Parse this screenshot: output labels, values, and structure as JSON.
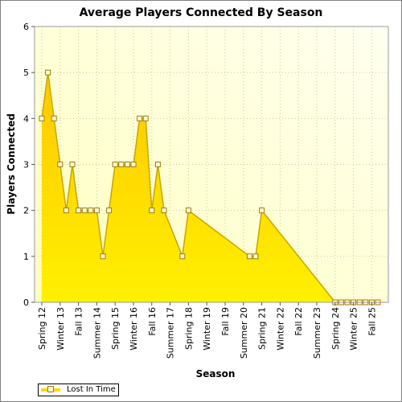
{
  "chart_data": {
    "type": "area",
    "title": "Average Players Connected By Season",
    "xlabel": "Season",
    "ylabel": "Players Connected",
    "ylim": [
      0,
      6
    ],
    "yticks": [
      0,
      1,
      2,
      3,
      4,
      5,
      6
    ],
    "grid": true,
    "legend_position": "bottom-left",
    "categories": [
      "Spring 12",
      "Summer 12",
      "Fall 12",
      "Winter 13",
      "Spring 13",
      "Summer 13",
      "Fall 13",
      "Winter 14",
      "Spring 14",
      "Summer 14",
      "Fall 14",
      "Winter 15",
      "Spring 15",
      "Summer 15",
      "Fall 15",
      "Winter 16",
      "Spring 16",
      "Summer 16",
      "Fall 16",
      "Winter 17",
      "Spring 17",
      "Summer 17",
      "Fall 17",
      "Winter 18",
      "Spring 18",
      "Summer 18",
      "Fall 18",
      "Winter 19",
      "Spring 19",
      "Summer 19",
      "Fall 19",
      "Winter 20",
      "Spring 20",
      "Summer 20",
      "Fall 20",
      "Winter 21",
      "Spring 21",
      "Summer 21",
      "Fall 21",
      "Winter 22",
      "Spring 22",
      "Summer 22",
      "Fall 22",
      "Winter 23",
      "Spring 23",
      "Summer 23",
      "Fall 23",
      "Winter 24",
      "Spring 24",
      "Summer 24",
      "Fall 24",
      "Winter 25",
      "Spring 25",
      "Summer 25",
      "Fall 25",
      "Winter 26"
    ],
    "shown_tick_labels": [
      "Spring 12",
      "Winter 13",
      "Fall 13",
      "Summer 14",
      "Spring 15",
      "Winter 16",
      "Fall 16",
      "Summer 17",
      "Spring 18",
      "Winter 19",
      "Fall 19",
      "Summer 20",
      "Spring 21",
      "Winter 22",
      "Fall 22",
      "Summer 23",
      "Spring 24",
      "Winter 25",
      "Fall 25"
    ],
    "series": [
      {
        "name": "Lost In Time",
        "color": "#ffd700",
        "line_color": "#c9a400",
        "points": [
          {
            "x": "Spring 12",
            "y": 4
          },
          {
            "x": "Summer 12",
            "y": 5
          },
          {
            "x": "Fall 12",
            "y": 4
          },
          {
            "x": "Winter 13",
            "y": 3
          },
          {
            "x": "Spring 13",
            "y": 2
          },
          {
            "x": "Summer 13",
            "y": 3
          },
          {
            "x": "Fall 13",
            "y": 2
          },
          {
            "x": "Winter 14",
            "y": 2
          },
          {
            "x": "Spring 14",
            "y": 2
          },
          {
            "x": "Summer 14",
            "y": 2
          },
          {
            "x": "Fall 14",
            "y": 1
          },
          {
            "x": "Winter 15",
            "y": 2
          },
          {
            "x": "Spring 15",
            "y": 3
          },
          {
            "x": "Summer 15",
            "y": 3
          },
          {
            "x": "Fall 15",
            "y": 3
          },
          {
            "x": "Winter 16",
            "y": 3
          },
          {
            "x": "Spring 16",
            "y": 4
          },
          {
            "x": "Summer 16",
            "y": 4
          },
          {
            "x": "Fall 16",
            "y": 2
          },
          {
            "x": "Winter 17",
            "y": 3
          },
          {
            "x": "Spring 17",
            "y": 2
          },
          {
            "x": "Winter 18",
            "y": 1
          },
          {
            "x": "Spring 18",
            "y": 2
          },
          {
            "x": "Fall 20",
            "y": 1
          },
          {
            "x": "Winter 21",
            "y": 1
          },
          {
            "x": "Spring 21",
            "y": 2
          },
          {
            "x": "Spring 24",
            "y": 0
          },
          {
            "x": "Summer 24",
            "y": 0
          },
          {
            "x": "Fall 24",
            "y": 0
          },
          {
            "x": "Winter 25",
            "y": 0
          },
          {
            "x": "Spring 25",
            "y": 0
          },
          {
            "x": "Summer 25",
            "y": 0
          },
          {
            "x": "Fall 25",
            "y": 0
          },
          {
            "x": "Winter 26",
            "y": 0
          }
        ]
      }
    ]
  },
  "legend": {
    "items": [
      {
        "label": "Lost In Time"
      }
    ]
  }
}
